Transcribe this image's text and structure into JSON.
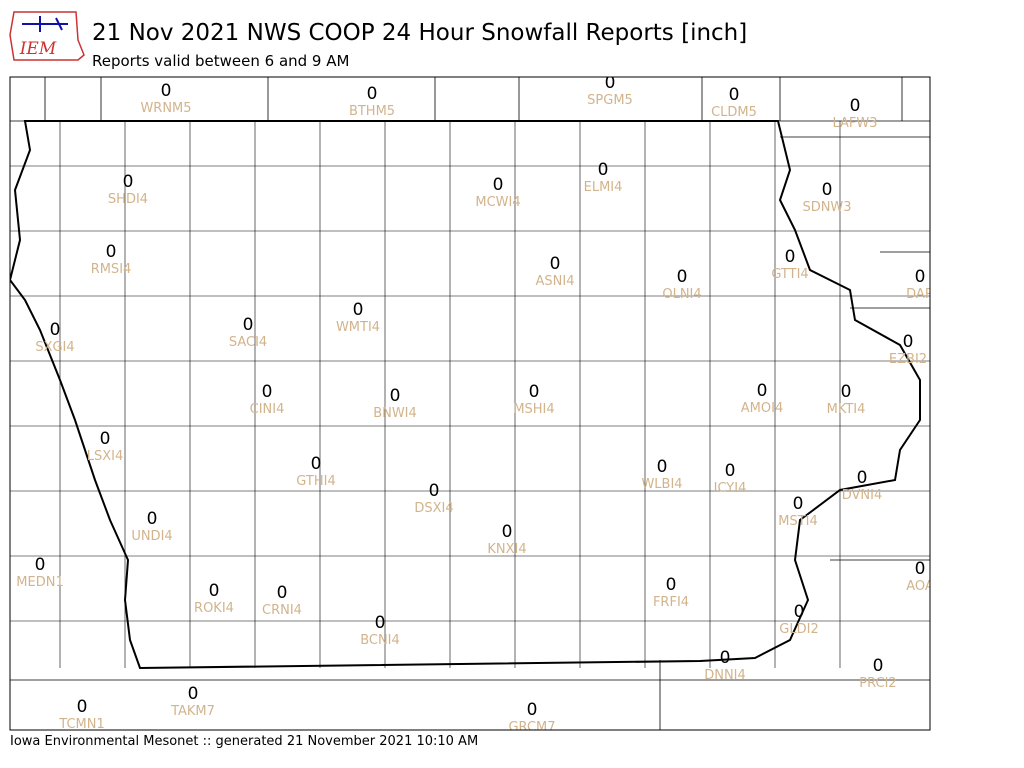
{
  "header": {
    "logo": "IEM",
    "title": "21 Nov 2021 NWS COOP 24 Hour Snowfall Reports [inch]",
    "subtitle": "Reports valid between 6 and 9 AM"
  },
  "stations": [
    {
      "id": "WRNM5",
      "value": 0
    },
    {
      "id": "BTHM5",
      "value": 0
    },
    {
      "id": "SPGM5",
      "value": 0
    },
    {
      "id": "CLDM5",
      "value": 0
    },
    {
      "id": "LAFW3",
      "value": 0
    },
    {
      "id": "SHDI4",
      "value": 0
    },
    {
      "id": "MCWI4",
      "value": 0
    },
    {
      "id": "ELMI4",
      "value": 0
    },
    {
      "id": "SDNW3",
      "value": 0
    },
    {
      "id": "RMSI4",
      "value": 0
    },
    {
      "id": "ASNI4",
      "value": 0
    },
    {
      "id": "OLNI4",
      "value": 0
    },
    {
      "id": "GTTI4",
      "value": 0
    },
    {
      "id": "DAR",
      "value": 0
    },
    {
      "id": "SXGI4",
      "value": 0
    },
    {
      "id": "SACI4",
      "value": 0
    },
    {
      "id": "WMTI4",
      "value": 0
    },
    {
      "id": "EZBI2",
      "value": 0
    },
    {
      "id": "CINI4",
      "value": 0
    },
    {
      "id": "BNWI4",
      "value": 0
    },
    {
      "id": "MSHI4",
      "value": 0
    },
    {
      "id": "AMOI4",
      "value": 0
    },
    {
      "id": "MKTI4",
      "value": 0
    },
    {
      "id": "LSXI4",
      "value": 0
    },
    {
      "id": "GTHI4",
      "value": 0
    },
    {
      "id": "WLBI4",
      "value": 0
    },
    {
      "id": "ICYI4",
      "value": 0
    },
    {
      "id": "DVNI4",
      "value": 0
    },
    {
      "id": "DSXI4",
      "value": 0
    },
    {
      "id": "MSTI4",
      "value": 0
    },
    {
      "id": "UNDI4",
      "value": 0
    },
    {
      "id": "KNXI4",
      "value": 0
    },
    {
      "id": "MEDN1",
      "value": 0
    },
    {
      "id": "AOA",
      "value": 0
    },
    {
      "id": "ROKI4",
      "value": 0
    },
    {
      "id": "CRNI4",
      "value": 0
    },
    {
      "id": "FRFI4",
      "value": 0
    },
    {
      "id": "BCNI4",
      "value": 0
    },
    {
      "id": "GLDI2",
      "value": 0
    },
    {
      "id": "DNNI4",
      "value": 0
    },
    {
      "id": "PRCI2",
      "value": 0
    },
    {
      "id": "TCMN1",
      "value": 0
    },
    {
      "id": "TAKM7",
      "value": 0
    },
    {
      "id": "GRCM7",
      "value": 0
    }
  ],
  "footer": "Iowa Environmental Mesonet :: generated 21 November 2021 10:10 AM"
}
